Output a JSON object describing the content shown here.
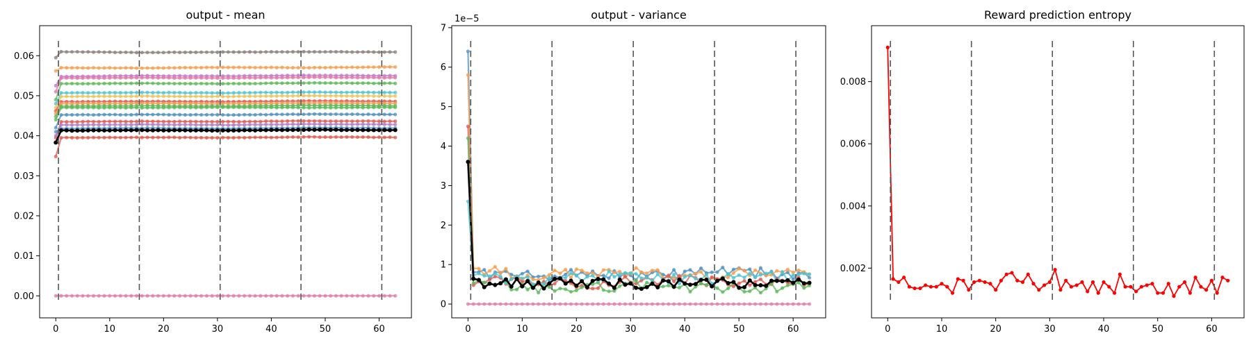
{
  "chart_data": [
    {
      "type": "line",
      "title": "output - mean",
      "xlabel": "",
      "ylabel": "",
      "xlim": [
        -3,
        66
      ],
      "ylim": [
        -0.0055,
        0.0675
      ],
      "xticks": [
        0,
        10,
        20,
        30,
        40,
        50,
        60
      ],
      "yticks": [
        0.0,
        0.01,
        0.02,
        0.03,
        0.04,
        0.05,
        0.06
      ],
      "ytick_labels": [
        "0.00",
        "0.01",
        "0.02",
        "0.03",
        "0.04",
        "0.05",
        "0.06"
      ],
      "vlines": [
        0.5,
        15.5,
        30.5,
        45.5,
        60.5
      ],
      "marker_count": 64,
      "series": [
        {
          "color": "#8c7f7a",
          "values": [
            0.0595,
            0.061,
            0.0608,
            0.0609,
            0.061,
            0.0609
          ]
        },
        {
          "color": "#f59d4e",
          "values": [
            0.0562,
            0.057,
            0.0569,
            0.0571,
            0.057,
            0.0572
          ]
        },
        {
          "color": "#c27bc9",
          "values": [
            0.0525,
            0.0548,
            0.055,
            0.0549,
            0.0551,
            0.055
          ]
        },
        {
          "color": "#e07aa8",
          "values": [
            0.051,
            0.0544,
            0.0545,
            0.0544,
            0.0546,
            0.0545
          ]
        },
        {
          "color": "#5cb85c",
          "values": [
            0.049,
            0.053,
            0.0531,
            0.053,
            0.0532,
            0.0531
          ]
        },
        {
          "color": "#4dc4cf",
          "values": [
            0.048,
            0.0507,
            0.0508,
            0.0507,
            0.0509,
            0.0508
          ]
        },
        {
          "color": "#e8c65a",
          "values": [
            0.047,
            0.0498,
            0.0499,
            0.0498,
            0.05,
            0.0499
          ]
        },
        {
          "color": "#e05a50",
          "values": [
            0.0462,
            0.0485,
            0.0486,
            0.0485,
            0.0487,
            0.0486
          ]
        },
        {
          "color": "#f59d4e",
          "values": [
            0.0455,
            0.048,
            0.0481,
            0.048,
            0.0482,
            0.0481
          ]
        },
        {
          "color": "#5cb85c",
          "values": [
            0.0448,
            0.0474,
            0.0475,
            0.0474,
            0.0476,
            0.0475
          ]
        },
        {
          "color": "#5cb85c",
          "values": [
            0.044,
            0.047,
            0.047,
            0.0471,
            0.047,
            0.0471
          ]
        },
        {
          "color": "#4e8fc2",
          "values": [
            0.042,
            0.0452,
            0.0453,
            0.0452,
            0.0454,
            0.0453
          ]
        },
        {
          "color": "#e05a50",
          "values": [
            0.0395,
            0.0435,
            0.0436,
            0.0435,
            0.0437,
            0.0436
          ]
        },
        {
          "color": "#b07ac9",
          "values": [
            0.04,
            0.0427,
            0.0428,
            0.0427,
            0.0429,
            0.0428
          ]
        },
        {
          "color": "#4e8fc2",
          "values": [
            0.041,
            0.0418,
            0.0419,
            0.0418,
            0.042,
            0.0419
          ]
        },
        {
          "color": "#e05a50",
          "values": [
            0.0348,
            0.0395,
            0.0396,
            0.0395,
            0.0397,
            0.0396
          ]
        },
        {
          "color": "#e07aa8",
          "values": [
            0.0,
            0.0,
            0.0,
            0.0,
            0.0,
            0.0
          ]
        },
        {
          "color": "#000000",
          "values": [
            0.0383,
            0.0413,
            0.0414,
            0.0413,
            0.0415,
            0.0414
          ],
          "bold": true
        }
      ]
    },
    {
      "type": "line",
      "title": "output - variance",
      "xlabel": "",
      "ylabel": "",
      "xlim": [
        -3,
        66
      ],
      "ylim": [
        -0.35,
        7.05
      ],
      "xticks": [
        0,
        10,
        20,
        30,
        40,
        50,
        60
      ],
      "yticks": [
        0,
        1,
        2,
        3,
        4,
        5,
        6,
        7
      ],
      "ytick_labels": [
        "0",
        "1",
        "2",
        "3",
        "4",
        "5",
        "6",
        "7"
      ],
      "offset_label": "1e−5",
      "vlines": [
        0.5,
        15.5,
        30.5,
        45.5,
        60.5
      ],
      "marker_count": 64,
      "series": [
        {
          "color": "#4e8fc2",
          "values": [
            6.4,
            0.8,
            0.7,
            0.8,
            0.7,
            0.8,
            0.8,
            0.7
          ]
        },
        {
          "color": "#f59d4e",
          "values": [
            5.8,
            0.9,
            0.7,
            0.8,
            0.8,
            0.7,
            0.8,
            0.8
          ]
        },
        {
          "color": "#e05a50",
          "values": [
            4.5,
            0.6,
            0.6,
            0.5,
            0.6,
            0.6,
            0.5,
            0.6
          ]
        },
        {
          "color": "#5cb85c",
          "values": [
            4.2,
            0.5,
            0.4,
            0.4,
            0.5,
            0.4,
            0.4,
            0.5
          ]
        },
        {
          "color": "#4dc4cf",
          "values": [
            2.6,
            0.7,
            0.6,
            0.7,
            0.7,
            0.6,
            0.7,
            0.7
          ]
        },
        {
          "color": "#e07aa8",
          "values": [
            0.0,
            0.0,
            0.0,
            0.0,
            0.0,
            0.0,
            0.0,
            0.0
          ]
        },
        {
          "color": "#000000",
          "values": [
            3.6,
            0.55,
            0.5,
            0.55,
            0.5,
            0.55,
            0.5,
            0.55
          ],
          "bold": true
        }
      ]
    },
    {
      "type": "line",
      "title": "Reward prediction entropy",
      "xlabel": "",
      "ylabel": "",
      "xlim": [
        -3,
        66
      ],
      "ylim": [
        0.0004,
        0.0098
      ],
      "xticks": [
        0,
        10,
        20,
        30,
        40,
        50,
        60
      ],
      "yticks": [
        0.002,
        0.004,
        0.006,
        0.008
      ],
      "ytick_labels": [
        "0.002",
        "0.004",
        "0.006",
        "0.008"
      ],
      "vlines": [
        0.5,
        15.5,
        30.5,
        45.5,
        60.5
      ],
      "series": [
        {
          "color": "#ff0000",
          "values": [
            0.0091,
            0.00165,
            0.00155,
            0.0017,
            0.0014,
            0.00135,
            0.00135,
            0.00145,
            0.0014,
            0.0014,
            0.0015,
            0.0014,
            0.0012,
            0.00165,
            0.0016,
            0.0013,
            0.00155,
            0.0016,
            0.00155,
            0.0015,
            0.0013,
            0.0016,
            0.0018,
            0.00185,
            0.0016,
            0.00155,
            0.0018,
            0.0015,
            0.0013,
            0.00145,
            0.00155,
            0.00195,
            0.0013,
            0.0016,
            0.0014,
            0.00145,
            0.00155,
            0.00125,
            0.00155,
            0.0012,
            0.00155,
            0.0014,
            0.0012,
            0.0018,
            0.0014,
            0.0014,
            0.00125,
            0.0014,
            0.00145,
            0.0015,
            0.0012,
            0.0012,
            0.0015,
            0.0011,
            0.0014,
            0.00155,
            0.0012,
            0.0017,
            0.0014,
            0.0013,
            0.0016,
            0.0012,
            0.0017,
            0.0016
          ]
        }
      ]
    }
  ]
}
